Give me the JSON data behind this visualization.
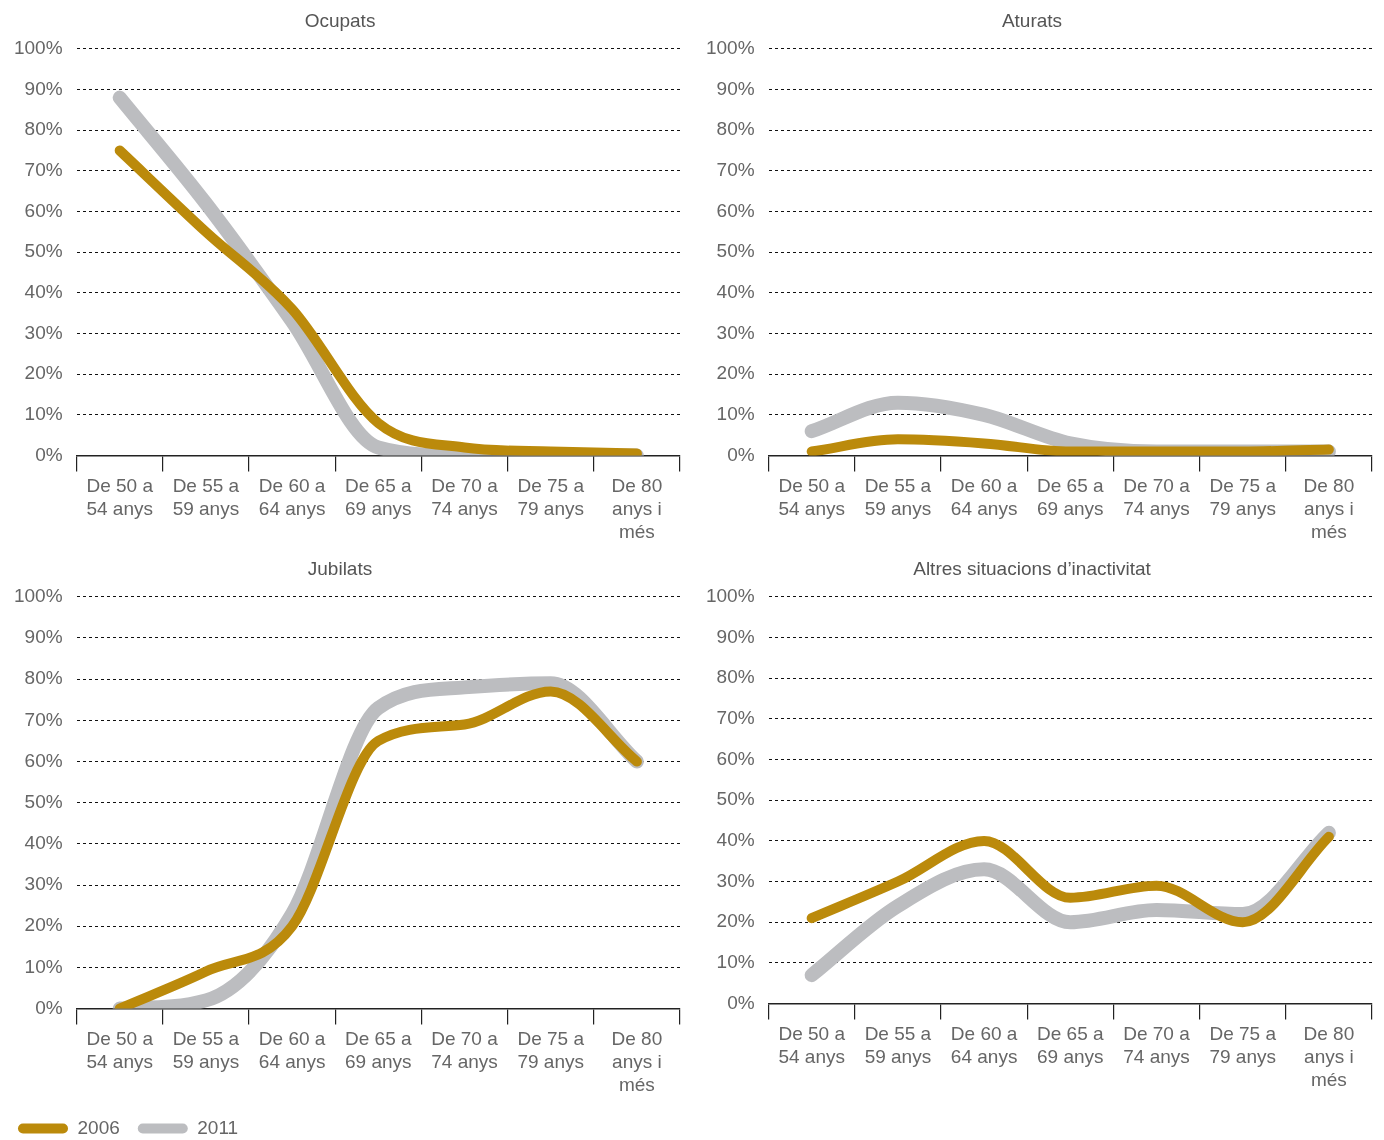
{
  "chart_data": [
    {
      "type": "line",
      "title": "Ocupats",
      "categories": [
        "De 50 a 54 anys",
        "De 55 a 59 anys",
        "De 60 a 64 anys",
        "De 65 a 69 anys",
        "De 70 a 74 anys",
        "De 75 a 79 anys",
        "De 80 anys i més"
      ],
      "series": [
        {
          "color": "#bb8a0b",
          "values": [
            75,
            55,
            36,
            8,
            2,
            1,
            0.5
          ]
        },
        {
          "color": "#bcbdc0",
          "values": [
            88,
            62,
            33,
            2,
            0,
            0,
            0
          ]
        }
      ],
      "ylim": [
        0,
        100
      ],
      "yticks": [
        {
          "value": 0,
          "label": "0%"
        },
        {
          "value": 10,
          "label": "10%"
        },
        {
          "value": 20,
          "label": "20%"
        },
        {
          "value": 30,
          "label": "30%"
        },
        {
          "value": 40,
          "label": "40%"
        },
        {
          "value": 50,
          "label": "50%"
        },
        {
          "value": 60,
          "label": "60%"
        },
        {
          "value": 70,
          "label": "70%"
        },
        {
          "value": 80,
          "label": "80%"
        },
        {
          "value": 90,
          "label": "90%"
        },
        {
          "value": 100,
          "label": "100%"
        }
      ],
      "grid": "y",
      "legend": false,
      "marker": "none",
      "line_style": "solid"
    },
    {
      "type": "line",
      "title": "Aturats",
      "categories": [
        "De 50 a 54 anys",
        "De 55 a 59 anys",
        "De 60 a 64 anys",
        "De 65 a 69 anys",
        "De 70 a 74 anys",
        "De 75 a 79 anys",
        "De 80 anys i més"
      ],
      "series": [
        {
          "color": "#bb8a0b",
          "values": [
            1,
            4,
            3,
            1,
            1,
            1,
            1.5
          ]
        },
        {
          "color": "#bcbdc0",
          "values": [
            6,
            13,
            10,
            3,
            1,
            1,
            1
          ]
        }
      ],
      "ylim": [
        0,
        100
      ],
      "yticks": [
        {
          "value": 0,
          "label": "0%"
        },
        {
          "value": 10,
          "label": "10%"
        },
        {
          "value": 20,
          "label": "20%"
        },
        {
          "value": 30,
          "label": "30%"
        },
        {
          "value": 40,
          "label": "40%"
        },
        {
          "value": 50,
          "label": "50%"
        },
        {
          "value": 60,
          "label": "60%"
        },
        {
          "value": 70,
          "label": "70%"
        },
        {
          "value": 80,
          "label": "80%"
        },
        {
          "value": 90,
          "label": "90%"
        },
        {
          "value": 100,
          "label": "100%"
        }
      ],
      "grid": "y",
      "legend": false,
      "marker": "none",
      "line_style": "solid"
    },
    {
      "type": "line",
      "title": "Jubilats",
      "categories": [
        "De 50 a 54 anys",
        "De 55 a 59 anys",
        "De 60 a 64 anys",
        "De 65 a 69 anys",
        "De 70 a 74 anys",
        "De 75 a 79 anys",
        "De 80 anys i més"
      ],
      "series": [
        {
          "name": "2006",
          "color": "#bb8a0b",
          "values": [
            0,
            9,
            20,
            65,
            69,
            77,
            60
          ]
        },
        {
          "name": "2011",
          "color": "#bcbdc0",
          "values": [
            0,
            2,
            23,
            73,
            78,
            79,
            60
          ]
        }
      ],
      "ylim": [
        0,
        100
      ],
      "yticks": [
        {
          "value": 0,
          "label": "0%"
        },
        {
          "value": 10,
          "label": "10%"
        },
        {
          "value": 20,
          "label": "20%"
        },
        {
          "value": 30,
          "label": "30%"
        },
        {
          "value": 40,
          "label": "40%"
        },
        {
          "value": 50,
          "label": "50%"
        },
        {
          "value": 60,
          "label": "60%"
        },
        {
          "value": 70,
          "label": "70%"
        },
        {
          "value": 80,
          "label": "80%"
        },
        {
          "value": 90,
          "label": "90%"
        },
        {
          "value": 100,
          "label": "100%"
        }
      ],
      "grid": "y",
      "legend": "bottom",
      "marker": "none",
      "line_style": "solid"
    },
    {
      "type": "line",
      "title": "Altres situacions d’inactivitat",
      "categories": [
        "De 50 a 54 anys",
        "De 55 a 59 anys",
        "De 60 a 64 anys",
        "De 65 a 69 anys",
        "De 70 a 74 anys",
        "De 75 a 79 anys",
        "De 80 anys i més"
      ],
      "series": [
        {
          "color": "#bb8a0b",
          "values": [
            21,
            30,
            40,
            26,
            29,
            20,
            41
          ]
        },
        {
          "color": "#bcbdc0",
          "values": [
            7,
            24,
            33,
            20,
            23,
            22,
            42
          ]
        }
      ],
      "ylim": [
        0,
        100
      ],
      "yticks": [
        {
          "value": 0,
          "label": "0%"
        },
        {
          "value": 10,
          "label": "10%"
        },
        {
          "value": 20,
          "label": "20%"
        },
        {
          "value": 30,
          "label": "30%"
        },
        {
          "value": 40,
          "label": "40%"
        },
        {
          "value": 50,
          "label": "50%"
        },
        {
          "value": 60,
          "label": "60%"
        },
        {
          "value": 70,
          "label": "70%"
        },
        {
          "value": 80,
          "label": "80%"
        },
        {
          "value": 90,
          "label": "90%"
        },
        {
          "value": 100,
          "label": "100%"
        }
      ],
      "grid": "y",
      "legend": false,
      "marker": "none",
      "line_style": "solid"
    }
  ]
}
